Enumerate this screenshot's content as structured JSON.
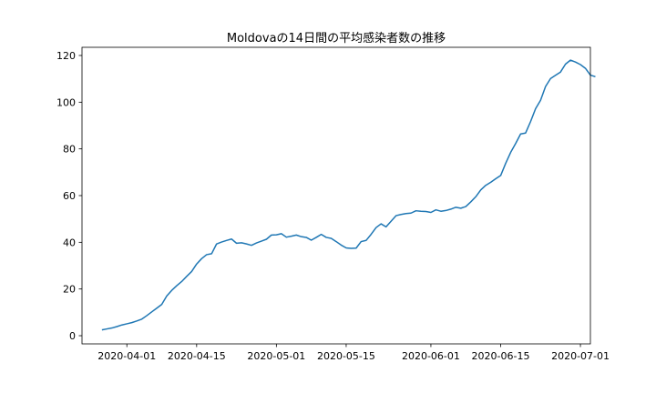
{
  "chart_data": {
    "type": "line",
    "title": "Moldovaの14日間の平均感染者数の推移",
    "xlabel": "",
    "ylabel": "",
    "grid": false,
    "x_start": "2020-03-27",
    "x_step_days": 1,
    "xlim": [
      "2020-03-23",
      "2020-07-03"
    ],
    "ylim": [
      -3.5,
      123.5
    ],
    "x_ticks": [
      "2020-04-01",
      "2020-04-15",
      "2020-05-01",
      "2020-05-15",
      "2020-06-01",
      "2020-06-15",
      "2020-07-01"
    ],
    "y_ticks": [
      0,
      20,
      40,
      60,
      80,
      100,
      120
    ],
    "color": "#1f77b4",
    "series": [
      {
        "values": [
          2.5,
          2.9,
          3.3,
          3.9,
          4.6,
          5.1,
          5.6,
          6.3,
          7.1,
          8.6,
          10.2,
          11.8,
          13.4,
          17.0,
          19.4,
          21.4,
          23.2,
          25.4,
          27.5,
          30.7,
          33.0,
          34.7,
          35.1,
          39.3,
          40.1,
          40.8,
          41.4,
          39.6,
          39.8,
          39.3,
          38.7,
          39.7,
          40.5,
          41.3,
          43.1,
          43.2,
          43.7,
          42.2,
          42.6,
          43.1,
          42.4,
          42.1,
          40.9,
          42.1,
          43.4,
          42.1,
          41.7,
          40.3,
          38.8,
          37.6,
          37.4,
          37.5,
          40.3,
          40.8,
          43.4,
          46.3,
          47.9,
          46.6,
          49.0,
          51.4,
          51.9,
          52.3,
          52.5,
          53.5,
          53.3,
          53.2,
          52.8,
          53.9,
          53.3,
          53.6,
          54.2,
          55.0,
          54.6,
          55.3,
          57.3,
          59.5,
          62.4,
          64.4,
          65.7,
          67.2,
          68.6,
          73.8,
          78.5,
          82.3,
          86.4,
          86.8,
          91.7,
          97.2,
          100.8,
          106.7,
          110.1,
          111.5,
          112.9,
          116.3,
          118.0,
          117.2,
          116.1,
          114.5,
          111.6,
          110.9
        ]
      }
    ]
  }
}
